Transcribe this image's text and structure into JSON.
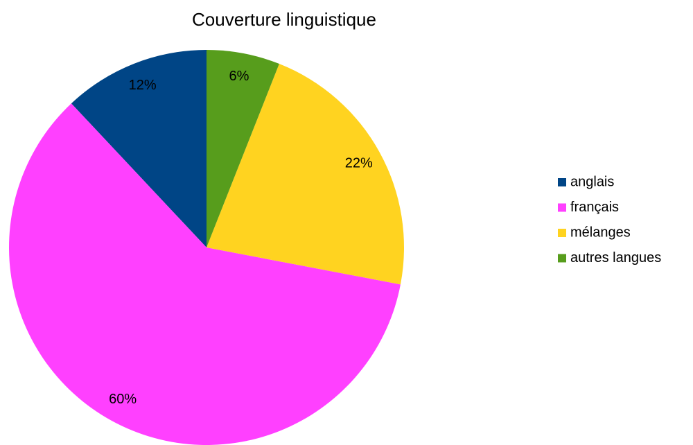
{
  "chart_data": {
    "type": "pie",
    "title": "Couverture linguistique",
    "categories": [
      "anglais",
      "français",
      "mélanges",
      "autres langues"
    ],
    "values": [
      12,
      60,
      22,
      6
    ],
    "value_labels": [
      "12%",
      "60%",
      "22%",
      "6%"
    ],
    "colors": [
      "#004586",
      "#ff40ff",
      "#ffd320",
      "#579d1c"
    ],
    "legend": "right"
  }
}
